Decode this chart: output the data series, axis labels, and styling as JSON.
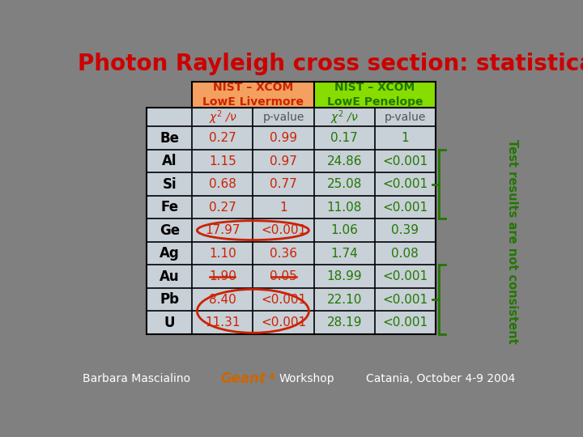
{
  "title": "Photon Rayleigh cross section: statistical results",
  "title_color": "#cc0000",
  "background_color": "#808080",
  "table_bg_color": "#c8d0d8",
  "header1_text": "NIST – XCOM\nLowE Livermore",
  "header2_text": "NIST – XCOM\nLowE Penelope",
  "header1_bg": "#f4a060",
  "header2_bg": "#88dd00",
  "header1_color": "#cc2200",
  "header2_color": "#227700",
  "elements": [
    "Be",
    "Al",
    "Si",
    "Fe",
    "Ge",
    "Ag",
    "Au",
    "Pb",
    "U"
  ],
  "elem_color": "#000000",
  "livermore_chi2": [
    "0.27",
    "1.15",
    "0.68",
    "0.27",
    "17.97",
    "1.10",
    "1.90",
    "8.40",
    "11.31"
  ],
  "livermore_pval": [
    "0.99",
    "0.97",
    "0.77",
    "1",
    "<0.001",
    "0.36",
    "0.05",
    "<0.001",
    "<0.001"
  ],
  "penelope_chi2": [
    "0.17",
    "24.86",
    "25.08",
    "11.08",
    "1.06",
    "1.74",
    "18.99",
    "22.10",
    "28.19"
  ],
  "penelope_pval": [
    "1",
    "<0.001",
    "<0.001",
    "<0.001",
    "0.39",
    "0.08",
    "<0.001",
    "<0.001",
    "<0.001"
  ],
  "livermore_color": "#cc2200",
  "penelope_color": "#227700",
  "sidebar_text": "Test results are not consistent",
  "sidebar_color": "#227700",
  "footer_left": "Barbara Mascialino",
  "footer_right": "Catania, October 4-9 2004",
  "footer_color": "#ffffff",
  "geant4_color": "#cc6600"
}
